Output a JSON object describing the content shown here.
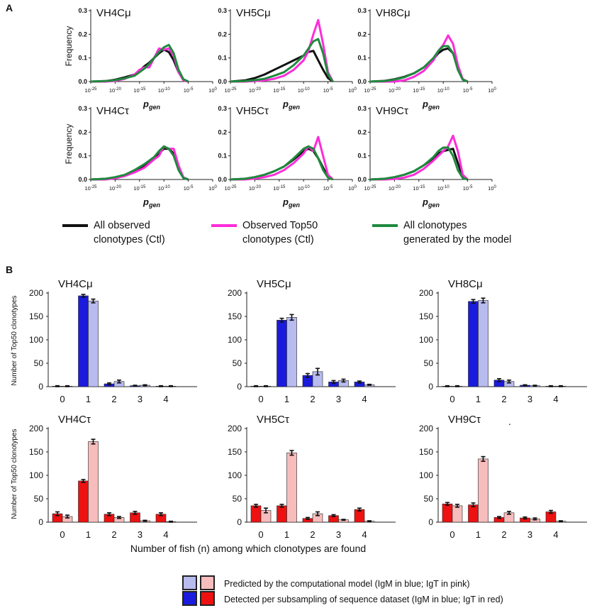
{
  "panel_a": {
    "label": "A",
    "legend": [
      {
        "line1": "All observed",
        "line2": "clonotypes (Ctl)",
        "color": "#111111"
      },
      {
        "line1": "Observed Top50",
        "line2": "clonotypes (Ctl)",
        "color": "#ff2bd9"
      },
      {
        "line1": "All  clonotypes",
        "line2": "generated by the model",
        "color": "#1f8a3e"
      }
    ]
  },
  "panel_b": {
    "label": "B",
    "ylabel": "Number of Top50 clonotypes",
    "xlabel": "Number of fish (n) among which clonotypes are found",
    "stray_mark": ".",
    "legend": [
      {
        "text": "Predicted by the computational model (IgM  in blue; IgT  in pink)",
        "colors": [
          "#b7bbee",
          "#f7bcbc"
        ]
      },
      {
        "text": "Detected per subsampling of sequence dataset  (IgM  in blue; IgT  in red)",
        "colors": [
          "#1b1bdd",
          "#ee1111"
        ]
      }
    ]
  },
  "chart_data": [
    {
      "type": "line",
      "panel": "A",
      "title": "VH4Cμ",
      "xlabel": "p_gen",
      "ylabel": "Frequency",
      "x_ticks": [
        "10^-25",
        "10^-20",
        "10^-15",
        "10^-10",
        "10^-5",
        "10^0"
      ],
      "y_ticks": [
        "0.0",
        "0.1",
        "0.2",
        "0.3"
      ],
      "xlim": [
        -25,
        0
      ],
      "ylim": [
        0,
        0.3
      ],
      "x": [
        -25,
        -22,
        -20,
        -18,
        -16,
        -15,
        -14,
        -13,
        -12,
        -11,
        -10,
        -9,
        -8,
        -7,
        -6,
        -5
      ],
      "series": [
        {
          "name": "All observed clonotypes (Ctl)",
          "color": "#111111",
          "values": [
            0,
            0.002,
            0.008,
            0.018,
            0.03,
            0.045,
            0.065,
            0.08,
            0.1,
            0.12,
            0.135,
            0.125,
            0.09,
            0.04,
            0.008,
            0
          ]
        },
        {
          "name": "Observed Top50 clonotypes (Ctl)",
          "color": "#ff2bd9",
          "values": [
            0,
            0,
            0.003,
            0.012,
            0.03,
            0.05,
            0.06,
            0.06,
            0.1,
            0.14,
            0.135,
            0.14,
            0.11,
            0.04,
            0.005,
            0
          ]
        },
        {
          "name": "All clonotypes generated by the model",
          "color": "#1f8a3e",
          "values": [
            0,
            0.002,
            0.006,
            0.014,
            0.025,
            0.04,
            0.055,
            0.075,
            0.1,
            0.125,
            0.145,
            0.155,
            0.12,
            0.05,
            0.01,
            0
          ]
        }
      ]
    },
    {
      "type": "line",
      "panel": "A",
      "title": "VH5Cμ",
      "xlabel": "p_gen",
      "ylabel": "",
      "x_ticks": [
        "10^-25",
        "10^-20",
        "10^-15",
        "10^-10",
        "10^-5",
        "10^0"
      ],
      "y_ticks": [
        "0.0",
        "0.1",
        "0.2",
        "0.3"
      ],
      "xlim": [
        -25,
        0
      ],
      "ylim": [
        0,
        0.3
      ],
      "x": [
        -25,
        -22,
        -20,
        -18,
        -16,
        -14,
        -12,
        -10,
        -9,
        -8,
        -7,
        -6,
        -5,
        -4
      ],
      "series": [
        {
          "name": "All observed clonotypes (Ctl)",
          "color": "#111111",
          "values": [
            0,
            0.005,
            0.015,
            0.03,
            0.05,
            0.07,
            0.09,
            0.11,
            0.125,
            0.13,
            0.09,
            0.05,
            0.015,
            0
          ]
        },
        {
          "name": "Observed Top50 clonotypes (Ctl)",
          "color": "#ff2bd9",
          "values": [
            0,
            0,
            0.002,
            0.005,
            0.012,
            0.025,
            0.05,
            0.09,
            0.13,
            0.2,
            0.26,
            0.16,
            0.04,
            0
          ]
        },
        {
          "name": "All clonotypes generated by the model",
          "color": "#1f8a3e",
          "values": [
            0,
            0.002,
            0.006,
            0.012,
            0.025,
            0.04,
            0.07,
            0.11,
            0.14,
            0.17,
            0.18,
            0.12,
            0.03,
            0
          ]
        }
      ]
    },
    {
      "type": "line",
      "panel": "A",
      "title": "VH8Cμ",
      "xlabel": "p_gen",
      "ylabel": "",
      "x_ticks": [
        "10^-25",
        "10^-20",
        "10^-15",
        "10^-10",
        "10^-5",
        "10^0"
      ],
      "y_ticks": [
        "0.0",
        "0.1",
        "0.2",
        "0.3"
      ],
      "xlim": [
        -25,
        0
      ],
      "ylim": [
        0,
        0.3
      ],
      "x": [
        -25,
        -22,
        -20,
        -18,
        -16,
        -14,
        -12,
        -11,
        -10,
        -9,
        -8,
        -7,
        -6,
        -5
      ],
      "series": [
        {
          "name": "All observed clonotypes (Ctl)",
          "color": "#111111",
          "values": [
            0,
            0.003,
            0.01,
            0.02,
            0.035,
            0.06,
            0.095,
            0.12,
            0.135,
            0.14,
            0.12,
            0.06,
            0.01,
            0
          ]
        },
        {
          "name": "Observed Top50 clonotypes (Ctl)",
          "color": "#ff2bd9",
          "values": [
            0,
            0,
            0,
            0.005,
            0.02,
            0.045,
            0.09,
            0.13,
            0.155,
            0.195,
            0.16,
            0.07,
            0.01,
            0
          ]
        },
        {
          "name": "All clonotypes generated by the model",
          "color": "#1f8a3e",
          "values": [
            0,
            0.002,
            0.008,
            0.018,
            0.035,
            0.06,
            0.1,
            0.13,
            0.15,
            0.15,
            0.12,
            0.05,
            0.008,
            0
          ]
        }
      ]
    },
    {
      "type": "line",
      "panel": "A",
      "title": "VH4Cτ",
      "xlabel": "p_gen",
      "ylabel": "Frequency",
      "x_ticks": [
        "10^-25",
        "10^-20",
        "10^-15",
        "10^-10",
        "10^-5",
        "10^0"
      ],
      "y_ticks": [
        "0.0",
        "0.1",
        "0.2",
        "0.3"
      ],
      "xlim": [
        -25,
        0
      ],
      "ylim": [
        0,
        0.3
      ],
      "x": [
        -25,
        -22,
        -20,
        -18,
        -16,
        -14,
        -12,
        -11,
        -10,
        -9,
        -8,
        -7,
        -6,
        -5
      ],
      "series": [
        {
          "name": "All observed clonotypes (Ctl)",
          "color": "#111111",
          "values": [
            0,
            0.003,
            0.008,
            0.018,
            0.035,
            0.06,
            0.09,
            0.11,
            0.13,
            0.13,
            0.11,
            0.05,
            0.008,
            0
          ]
        },
        {
          "name": "Observed Top50 clonotypes (Ctl)",
          "color": "#ff2bd9",
          "values": [
            0,
            0,
            0.005,
            0.015,
            0.03,
            0.05,
            0.085,
            0.1,
            0.14,
            0.13,
            0.13,
            0.06,
            0.008,
            0
          ]
        },
        {
          "name": "All clonotypes generated by the model",
          "color": "#1f8a3e",
          "values": [
            0,
            0.003,
            0.01,
            0.02,
            0.04,
            0.065,
            0.095,
            0.12,
            0.14,
            0.13,
            0.1,
            0.04,
            0.006,
            0
          ]
        }
      ]
    },
    {
      "type": "line",
      "panel": "A",
      "title": "VH5Cτ",
      "xlabel": "p_gen",
      "ylabel": "",
      "x_ticks": [
        "10^-25",
        "10^-20",
        "10^-15",
        "10^-10",
        "10^-5",
        "10^0"
      ],
      "y_ticks": [
        "0.0",
        "0.1",
        "0.2",
        "0.3"
      ],
      "xlim": [
        -25,
        0
      ],
      "ylim": [
        0,
        0.3
      ],
      "x": [
        -25,
        -22,
        -20,
        -18,
        -16,
        -14,
        -12,
        -10,
        -9,
        -8,
        -7,
        -6,
        -5,
        -4
      ],
      "series": [
        {
          "name": "All observed clonotypes (Ctl)",
          "color": "#111111",
          "values": [
            0,
            0.003,
            0.01,
            0.02,
            0.035,
            0.055,
            0.085,
            0.12,
            0.13,
            0.12,
            0.09,
            0.05,
            0.012,
            0
          ]
        },
        {
          "name": "Observed Top50 clonotypes (Ctl)",
          "color": "#ff2bd9",
          "values": [
            0,
            0,
            0.004,
            0.01,
            0.02,
            0.04,
            0.07,
            0.11,
            0.14,
            0.12,
            0.18,
            0.1,
            0.02,
            0
          ]
        },
        {
          "name": "All clonotypes generated by the model",
          "color": "#1f8a3e",
          "values": [
            0,
            0.003,
            0.01,
            0.02,
            0.035,
            0.055,
            0.09,
            0.13,
            0.14,
            0.13,
            0.09,
            0.04,
            0.008,
            0
          ]
        }
      ]
    },
    {
      "type": "line",
      "panel": "A",
      "title": "VH9Cτ",
      "xlabel": "p_gen",
      "ylabel": "",
      "x_ticks": [
        "10^-25",
        "10^-20",
        "10^-15",
        "10^-10",
        "10^-5",
        "10^0"
      ],
      "y_ticks": [
        "0.0",
        "0.1",
        "0.2",
        "0.3"
      ],
      "xlim": [
        -25,
        0
      ],
      "ylim": [
        0,
        0.3
      ],
      "x": [
        -25,
        -22,
        -20,
        -18,
        -16,
        -14,
        -12,
        -11,
        -10,
        -9,
        -8,
        -7,
        -6,
        -5
      ],
      "series": [
        {
          "name": "All observed clonotypes (Ctl)",
          "color": "#111111",
          "values": [
            0,
            0.003,
            0.01,
            0.02,
            0.035,
            0.06,
            0.09,
            0.11,
            0.12,
            0.125,
            0.13,
            0.07,
            0.01,
            0
          ]
        },
        {
          "name": "Observed Top50 clonotypes (Ctl)",
          "color": "#ff2bd9",
          "values": [
            0,
            0,
            0.002,
            0.008,
            0.02,
            0.045,
            0.08,
            0.1,
            0.12,
            0.14,
            0.185,
            0.12,
            0.02,
            0
          ]
        },
        {
          "name": "All clonotypes generated by the model",
          "color": "#1f8a3e",
          "values": [
            0,
            0.003,
            0.01,
            0.02,
            0.035,
            0.06,
            0.095,
            0.12,
            0.135,
            0.135,
            0.1,
            0.04,
            0.006,
            0
          ]
        }
      ]
    },
    {
      "type": "bar",
      "panel": "B",
      "title": "VH4Cμ",
      "ylabel": "Number of Top50 clonotypes",
      "categories": [
        "0",
        "1",
        "2",
        "3",
        "4"
      ],
      "ylim": [
        0,
        200
      ],
      "y_ticks": [
        "0",
        "50",
        "100",
        "150",
        "200"
      ],
      "series": [
        {
          "name": "Detected per subsampling (IgM)",
          "color": "#1b1bdd",
          "values": [
            1,
            194,
            6,
            2,
            1
          ],
          "errors": [
            1,
            3,
            2,
            1,
            1
          ]
        },
        {
          "name": "Predicted by the computational model (IgM)",
          "color": "#b7bbee",
          "values": [
            1,
            183,
            11,
            3,
            1
          ],
          "errors": [
            1,
            4,
            3,
            1,
            1
          ]
        }
      ]
    },
    {
      "type": "bar",
      "panel": "B",
      "title": "VH5Cμ",
      "ylabel": "",
      "categories": [
        "0",
        "1",
        "2",
        "3",
        "4"
      ],
      "ylim": [
        0,
        200
      ],
      "y_ticks": [
        "0",
        "50",
        "100",
        "150",
        "200"
      ],
      "series": [
        {
          "name": "Detected per subsampling (IgM)",
          "color": "#1b1bdd",
          "values": [
            1,
            142,
            24,
            10,
            10
          ],
          "errors": [
            1,
            4,
            4,
            3,
            2
          ]
        },
        {
          "name": "Predicted by the computational model (IgM)",
          "color": "#b7bbee",
          "values": [
            1,
            148,
            32,
            13,
            4
          ],
          "errors": [
            1,
            6,
            7,
            3,
            1
          ]
        }
      ]
    },
    {
      "type": "bar",
      "panel": "B",
      "title": "VH8Cμ",
      "ylabel": "",
      "categories": [
        "0",
        "1",
        "2",
        "3",
        "4"
      ],
      "ylim": [
        0,
        200
      ],
      "y_ticks": [
        "0",
        "50",
        "100",
        "150",
        "200"
      ],
      "series": [
        {
          "name": "Detected per subsampling (IgM)",
          "color": "#1b1bdd",
          "values": [
            1,
            182,
            14,
            3,
            1
          ],
          "errors": [
            1,
            4,
            3,
            1,
            1
          ]
        },
        {
          "name": "Predicted by the computational model (IgM)",
          "color": "#b7bbee",
          "values": [
            1,
            184,
            11,
            2,
            1
          ],
          "errors": [
            1,
            5,
            3,
            1,
            1
          ]
        }
      ]
    },
    {
      "type": "bar",
      "panel": "B",
      "title": "VH4Cτ",
      "ylabel": "Number of Top50 clonotypes",
      "categories": [
        "0",
        "1",
        "2",
        "3",
        "4"
      ],
      "ylim": [
        0,
        200
      ],
      "y_ticks": [
        "0",
        "50",
        "100",
        "150",
        "200"
      ],
      "series": [
        {
          "name": "Detected per subsampling (IgT)",
          "color": "#ee1111",
          "values": [
            18,
            88,
            17,
            20,
            17
          ],
          "errors": [
            4,
            3,
            3,
            3,
            3
          ]
        },
        {
          "name": "Predicted by the computational model (IgT)",
          "color": "#f7bcbc",
          "values": [
            12,
            172,
            10,
            3,
            1
          ],
          "errors": [
            3,
            5,
            2,
            1,
            1
          ]
        }
      ]
    },
    {
      "type": "bar",
      "panel": "B",
      "title": "VH5Cτ",
      "ylabel": "",
      "categories": [
        "0",
        "1",
        "2",
        "3",
        "4"
      ],
      "ylim": [
        0,
        200
      ],
      "y_ticks": [
        "0",
        "50",
        "100",
        "150",
        "200"
      ],
      "series": [
        {
          "name": "Detected per subsampling (IgT)",
          "color": "#ee1111",
          "values": [
            35,
            35,
            8,
            14,
            27
          ],
          "errors": [
            3,
            3,
            2,
            2,
            3
          ]
        },
        {
          "name": "Predicted by the computational model (IgT)",
          "color": "#f7bcbc",
          "values": [
            25,
            148,
            18,
            5,
            2
          ],
          "errors": [
            5,
            5,
            4,
            1,
            1
          ]
        }
      ]
    },
    {
      "type": "bar",
      "panel": "B",
      "title": "VH9Cτ",
      "ylabel": "",
      "categories": [
        "0",
        "1",
        "2",
        "3",
        "4"
      ],
      "ylim": [
        0,
        200
      ],
      "y_ticks": [
        "0",
        "50",
        "100",
        "150",
        "200"
      ],
      "series": [
        {
          "name": "Detected per subsampling (IgT)",
          "color": "#ee1111",
          "values": [
            39,
            37,
            10,
            9,
            22
          ],
          "errors": [
            3,
            4,
            2,
            2,
            3
          ]
        },
        {
          "name": "Predicted by the computational model (IgT)",
          "color": "#f7bcbc",
          "values": [
            35,
            135,
            20,
            7,
            2
          ],
          "errors": [
            3,
            5,
            3,
            2,
            1
          ]
        }
      ]
    }
  ]
}
